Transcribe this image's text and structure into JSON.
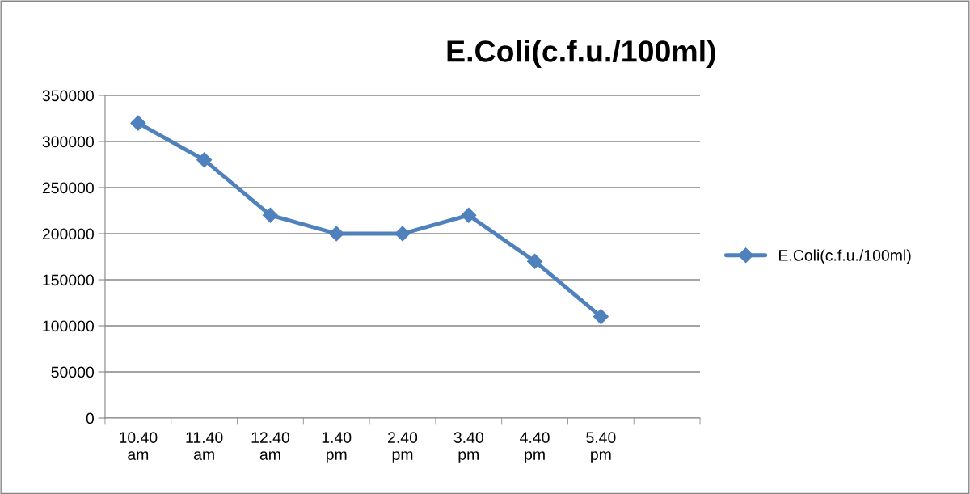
{
  "chart_data": {
    "type": "line",
    "title": "E.Coli(c.f.u./100ml)",
    "categories": [
      "10.40\nam",
      "11.40\nam",
      "12.40\nam",
      "1.40\npm",
      "2.40\npm",
      "3.40\npm",
      "4.40\npm",
      "5.40\npm",
      null
    ],
    "series": [
      {
        "name": "E.Coli(c.f.u./100ml)",
        "color": "#4f81bd",
        "values": [
          320000,
          280000,
          220000,
          200000,
          200000,
          220000,
          170000,
          110000,
          null
        ]
      }
    ],
    "ylim": [
      0,
      350000
    ],
    "yticks": [
      0,
      50000,
      100000,
      150000,
      200000,
      250000,
      300000,
      350000
    ],
    "grid": "y",
    "legend": "right",
    "marker": "diamond",
    "line_style": "solid"
  }
}
